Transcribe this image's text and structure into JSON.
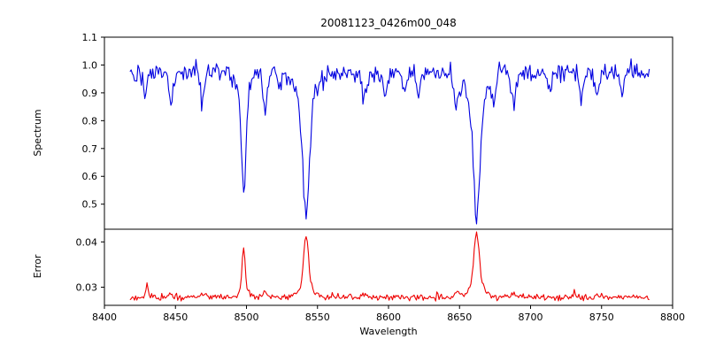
{
  "chart_data": {
    "type": "line",
    "title": "20081123_0426m00_048",
    "xlabel": "Wavelength",
    "xlim": [
      8400,
      8800
    ],
    "x_ticks": [
      "8400",
      "8450",
      "8500",
      "8550",
      "8600",
      "8650",
      "8700",
      "8750",
      "8800"
    ],
    "x_data_range": [
      8418,
      8784
    ],
    "grid": false,
    "legend": "none",
    "panels": [
      {
        "name": "spectrum",
        "ylabel": "Spectrum",
        "ylim": [
          0.41,
          1.1
        ],
        "y_ticks": [
          "0.5",
          "0.6",
          "0.7",
          "0.8",
          "0.9",
          "1.0",
          "1.1"
        ],
        "line_color": "#0000e0",
        "continuum_level": 0.973,
        "noise_sigma": 0.017,
        "absorption_lines": [
          {
            "center": 8498,
            "depth": 0.42,
            "core_sigma": 1.5,
            "wing_sigma": 4.0,
            "min_value": 0.56
          },
          {
            "center": 8542,
            "depth": 0.52,
            "core_sigma": 2.2,
            "wing_sigma": 6.5,
            "min_value": 0.455
          },
          {
            "center": 8662,
            "depth": 0.52,
            "core_sigma": 2.2,
            "wing_sigma": 6.0,
            "min_value": 0.455
          }
        ],
        "minor_absorption_lines": [
          {
            "center": 8429,
            "depth": 0.07,
            "sigma": 1.2
          },
          {
            "center": 8447,
            "depth": 0.1,
            "sigma": 1.4
          },
          {
            "center": 8469,
            "depth": 0.11,
            "sigma": 1.4
          },
          {
            "center": 8513,
            "depth": 0.14,
            "sigma": 1.4
          },
          {
            "center": 8523,
            "depth": 0.06,
            "sigma": 1.2
          },
          {
            "center": 8583,
            "depth": 0.1,
            "sigma": 1.4
          },
          {
            "center": 8598,
            "depth": 0.08,
            "sigma": 1.3
          },
          {
            "center": 8611,
            "depth": 0.06,
            "sigma": 1.2
          },
          {
            "center": 8621,
            "depth": 0.08,
            "sigma": 1.3
          },
          {
            "center": 8648,
            "depth": 0.12,
            "sigma": 1.8
          },
          {
            "center": 8674,
            "depth": 0.08,
            "sigma": 1.4
          },
          {
            "center": 8688,
            "depth": 0.12,
            "sigma": 1.6
          },
          {
            "center": 8713,
            "depth": 0.08,
            "sigma": 1.4
          },
          {
            "center": 8736,
            "depth": 0.1,
            "sigma": 1.4
          },
          {
            "center": 8747,
            "depth": 0.08,
            "sigma": 1.3
          },
          {
            "center": 8764,
            "depth": 0.07,
            "sigma": 1.3
          }
        ]
      },
      {
        "name": "error",
        "ylabel": "Error",
        "ylim": [
          0.026,
          0.0428
        ],
        "y_ticks": [
          "0.03",
          "0.04"
        ],
        "line_color": "#ee0000",
        "baseline_level": 0.0278,
        "noise_sigma": 0.00035,
        "peaks": [
          {
            "center": 8430,
            "height": 0.0032,
            "sigma": 0.6
          },
          {
            "center": 8447,
            "height": 0.0008,
            "sigma": 0.8
          },
          {
            "center": 8469,
            "height": 0.0008,
            "sigma": 0.8
          },
          {
            "center": 8498,
            "height": 0.0112,
            "sigma": 1.0,
            "max_value": 0.039
          },
          {
            "center": 8513,
            "height": 0.0015,
            "sigma": 0.8
          },
          {
            "center": 8542,
            "height": 0.0137,
            "sigma": 1.6,
            "max_value": 0.0415
          },
          {
            "center": 8583,
            "height": 0.0008,
            "sigma": 0.8
          },
          {
            "center": 8648,
            "height": 0.0012,
            "sigma": 1.0
          },
          {
            "center": 8662,
            "height": 0.0143,
            "sigma": 1.8,
            "max_value": 0.042
          },
          {
            "center": 8688,
            "height": 0.001,
            "sigma": 0.9
          },
          {
            "center": 8731,
            "height": 0.0015,
            "sigma": 0.7
          }
        ]
      }
    ]
  }
}
